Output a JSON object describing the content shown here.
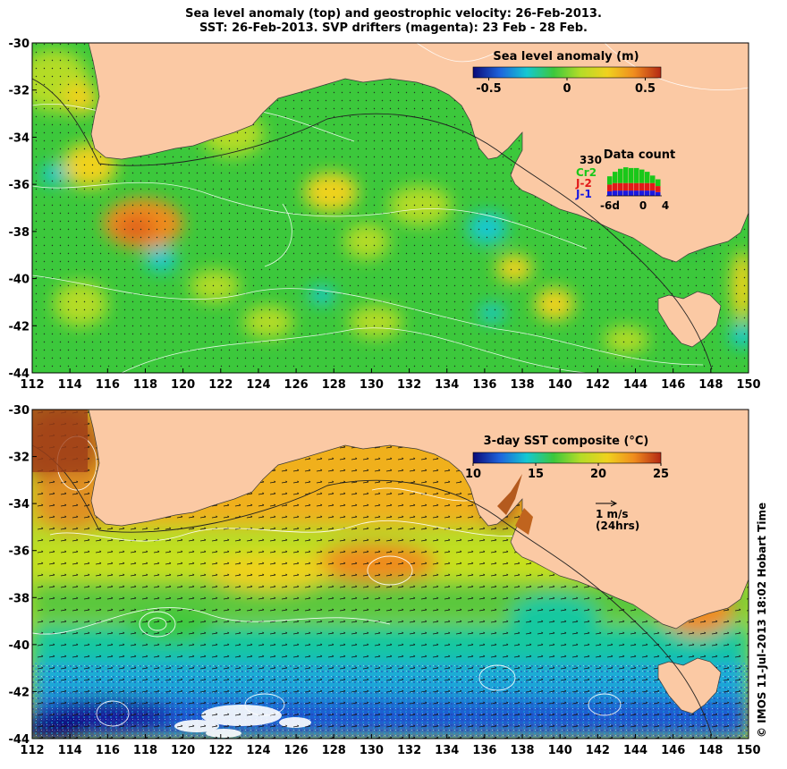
{
  "title": {
    "line1": "Sea level anomaly (top) and geostrophic velocity: 26-Feb-2013.",
    "line2": "SST: 26-Feb-2013. SVP drifters (magenta): 23 Feb - 28 Feb."
  },
  "credit": "© IMOS 11-Jul-2013 18:02 Hobart Time",
  "axes": {
    "lon_ticks": [
      "112",
      "114",
      "116",
      "118",
      "120",
      "122",
      "124",
      "126",
      "128",
      "130",
      "132",
      "134",
      "136",
      "138",
      "140",
      "142",
      "144",
      "146",
      "148",
      "150"
    ],
    "lat_ticks": [
      "-30",
      "-32",
      "-34",
      "-36",
      "-38",
      "-40",
      "-42",
      "-44"
    ]
  },
  "top_panel": {
    "colorbar": {
      "title": "Sea level anomaly (m)",
      "tick_labels": [
        "-0.5",
        "0",
        "0.5"
      ],
      "range": [
        -0.6,
        0.6
      ],
      "colors": [
        "#0a0a78",
        "#1e64dc",
        "#14c8d2",
        "#3cc83c",
        "#b4dc28",
        "#f0d21e",
        "#f08c1e",
        "#b42814"
      ]
    },
    "data_count": {
      "title": "Data count",
      "max_label": "330",
      "series": [
        {
          "name": "Cr2",
          "color": "#19c819"
        },
        {
          "name": "J-2",
          "color": "#e11919"
        },
        {
          "name": "J-1",
          "color": "#1919e1"
        }
      ],
      "x_labels": [
        "-6d",
        "0",
        "4"
      ]
    }
  },
  "bottom_panel": {
    "colorbar": {
      "title": "3-day SST composite (°C)",
      "tick_labels": [
        "10",
        "15",
        "20",
        "25"
      ],
      "range": [
        10,
        25
      ],
      "colors": [
        "#0a0a78",
        "#1e64dc",
        "#14c8d2",
        "#3cc83c",
        "#b4dc28",
        "#f0d21e",
        "#f08c1e",
        "#b42814"
      ]
    },
    "vector_key": {
      "speed": "1 m/s",
      "duration": "(24hrs)"
    }
  },
  "colors": {
    "land": "#fbc9a4",
    "coast_line": "#3a3a3a",
    "contour": "#ffffff"
  }
}
